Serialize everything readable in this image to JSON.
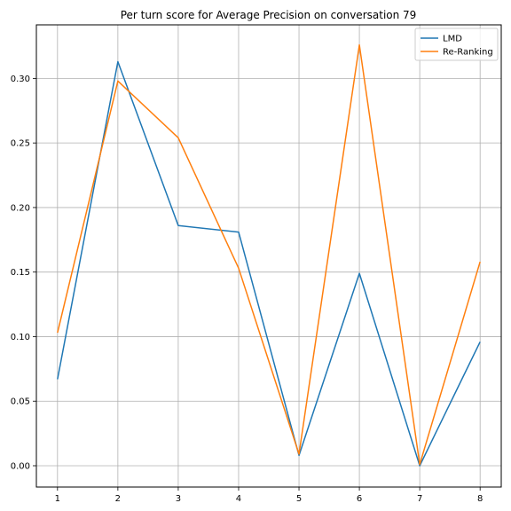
{
  "chart_data": {
    "type": "line",
    "title": "Per turn score for Average Precision on conversation 79",
    "xlabel": "",
    "ylabel": "",
    "x": [
      1,
      2,
      3,
      4,
      5,
      6,
      7,
      8
    ],
    "xlim": [
      0.65,
      8.35
    ],
    "ylim": [
      -0.0165,
      0.3415
    ],
    "yticks": [
      0.0,
      0.05,
      0.1,
      0.15,
      0.2,
      0.25,
      0.3
    ],
    "ytick_labels": [
      "0.00",
      "0.05",
      "0.10",
      "0.15",
      "0.20",
      "0.25",
      "0.30"
    ],
    "xticks": [
      1,
      2,
      3,
      4,
      5,
      6,
      7,
      8
    ],
    "xtick_labels": [
      "1",
      "2",
      "3",
      "4",
      "5",
      "6",
      "7",
      "8"
    ],
    "grid": true,
    "legend_position": "top-right",
    "series": [
      {
        "name": "LMD",
        "color": "#1f77b4",
        "values": [
          0.067,
          0.313,
          0.186,
          0.181,
          0.008,
          0.149,
          0.0,
          0.096
        ]
      },
      {
        "name": "Re-Ranking",
        "color": "#ff7f0e",
        "values": [
          0.103,
          0.298,
          0.254,
          0.153,
          0.009,
          0.326,
          0.001,
          0.158
        ]
      }
    ]
  }
}
